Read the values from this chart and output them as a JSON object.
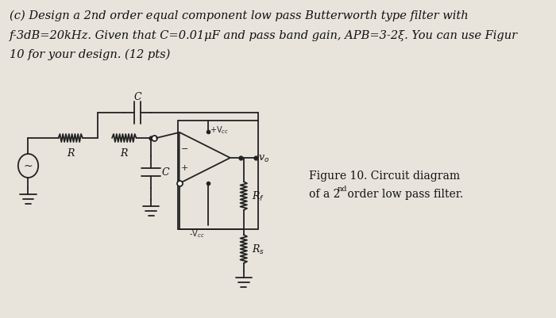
{
  "background_color": "#e8e4dc",
  "paper_color": "#f0ece4",
  "title_text": "(c) Design a 2nd order equal component low pass Butterworth type filter with",
  "body_text1": "f-3dB=20kHz. Given that C=0.01μF and pass band gain, APB=3-2ξ. You can use Figur",
  "body_text2": "10 for your design. (12 pts)",
  "figure_caption1": "Figure 10. Circuit diagram",
  "figure_caption2": "of a 2",
  "figure_caption2_sup": "nd",
  "figure_caption2_rest": " order low pass filter.",
  "font_size_title": 10.5,
  "font_size_body": 10.5,
  "text_color": "#111111",
  "circuit_color": "#222222",
  "lw": 1.3
}
